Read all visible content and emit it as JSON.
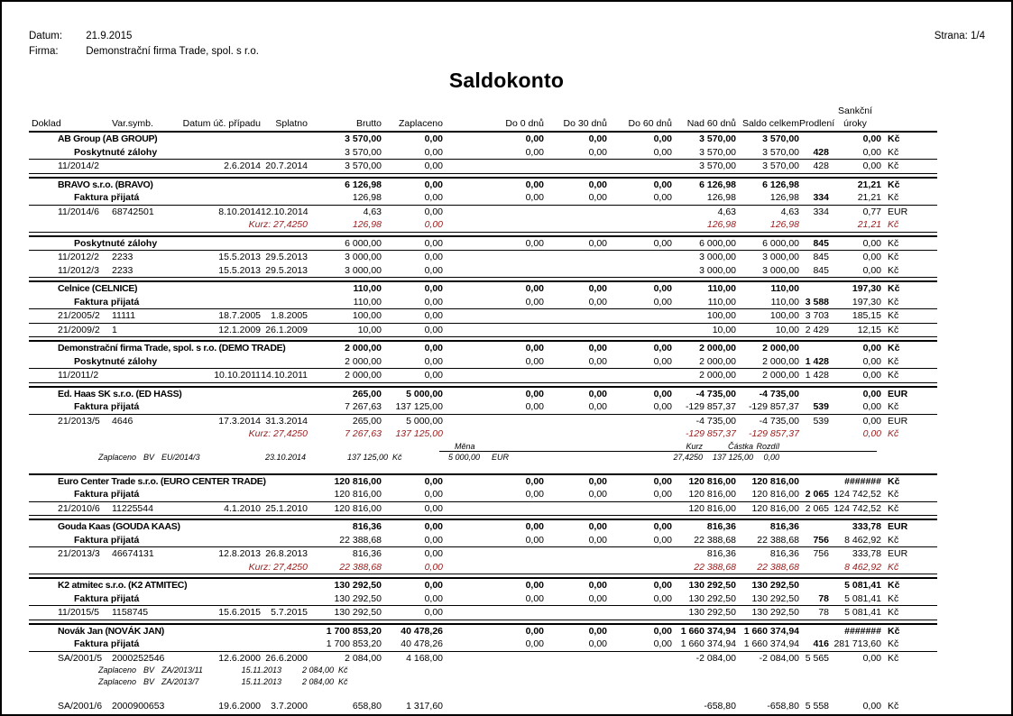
{
  "colors": {
    "accent_red": "#9b1b1b",
    "line": "#000000",
    "background": "#ffffff"
  },
  "page": {
    "date_label": "Datum:",
    "date": "21.9.2015",
    "firm_label": "Firma:",
    "firm": "Demonstrační firma Trade, spol. s r.o.",
    "page_label": "Strana: 1/4",
    "title": "Saldokonto"
  },
  "table": {
    "header": {
      "cols": [
        "Doklad",
        "Var.symb.",
        "Datum úč. případu",
        "Splatno",
        "Brutto",
        "Zaplaceno",
        "Do 0 dnů",
        "Do 30 dnů",
        "Do 60 dnů",
        "Nad 60 dnů",
        "Saldo celkem",
        "Prodlení"
      ],
      "sankcni_top": "Sankční",
      "sankcni_bottom": "úroky"
    },
    "sections": [
      {
        "end_line": true,
        "rows": [
          {
            "t": "c",
            "name": "AB Group (AB GROUP)",
            "n": [
              "3 570,00",
              "0,00",
              "0,00",
              "0,00",
              "0,00",
              "3 570,00",
              "3 570,00",
              "",
              "0,00",
              "Kč"
            ]
          },
          {
            "t": "g",
            "label": "Poskytnuté zálohy",
            "n": [
              "3 570,00",
              "0,00",
              "0,00",
              "0,00",
              "0,00",
              "3 570,00",
              "3 570,00",
              "428",
              "0,00",
              "Kč"
            ]
          },
          {
            "t": "d",
            "sep": true,
            "doklad": "11/2014/2",
            "vs": "",
            "datum": "2.6.2014",
            "splatno": "20.7.2014",
            "n": [
              "3 570,00",
              "0,00",
              "",
              "",
              "",
              "3 570,00",
              "3 570,00",
              "428",
              "0,00",
              "Kč"
            ]
          }
        ]
      },
      {
        "end_line": true,
        "rows": [
          {
            "t": "c",
            "name": "BRAVO s.r.o. (BRAVO)",
            "n": [
              "6 126,98",
              "0,00",
              "0,00",
              "0,00",
              "0,00",
              "6 126,98",
              "6 126,98",
              "",
              "21,21",
              "Kč"
            ]
          },
          {
            "t": "g",
            "label": "Faktura přijatá",
            "n": [
              "126,98",
              "0,00",
              "0,00",
              "0,00",
              "0,00",
              "126,98",
              "126,98",
              "334",
              "21,21",
              "Kč"
            ]
          },
          {
            "t": "d",
            "sep": true,
            "doklad": "11/2014/6",
            "vs": "68742501",
            "datum": "8.10.2014",
            "splatno": "12.10.2014",
            "n": [
              "4,63",
              "0,00",
              "",
              "",
              "",
              "4,63",
              "4,63",
              "334",
              "0,77",
              "EUR"
            ]
          },
          {
            "t": "k",
            "label": "Kurz: 27,4250",
            "n": [
              "126,98",
              "0,00",
              "",
              "",
              "",
              "126,98",
              "126,98",
              "",
              "21,21",
              "Kč"
            ]
          }
        ]
      },
      {
        "end_line": true,
        "rows": [
          {
            "t": "g",
            "label": "Poskytnuté zálohy",
            "n": [
              "6 000,00",
              "0,00",
              "0,00",
              "0,00",
              "0,00",
              "6 000,00",
              "6 000,00",
              "845",
              "0,00",
              "Kč"
            ]
          },
          {
            "t": "d",
            "sep": true,
            "doklad": "11/2012/2",
            "vs": "2233",
            "datum": "15.5.2013",
            "splatno": "29.5.2013",
            "n": [
              "3 000,00",
              "0,00",
              "",
              "",
              "",
              "3 000,00",
              "3 000,00",
              "845",
              "0,00",
              "Kč"
            ]
          },
          {
            "t": "d",
            "sep": false,
            "doklad": "11/2012/3",
            "vs": "2233",
            "datum": "15.5.2013",
            "splatno": "29.5.2013",
            "n": [
              "3 000,00",
              "0,00",
              "",
              "",
              "",
              "3 000,00",
              "3 000,00",
              "845",
              "0,00",
              "Kč"
            ]
          }
        ]
      },
      {
        "end_line": true,
        "rows": [
          {
            "t": "c",
            "name": "Celnice (CELNICE)",
            "n": [
              "110,00",
              "0,00",
              "0,00",
              "0,00",
              "0,00",
              "110,00",
              "110,00",
              "",
              "197,30",
              "Kč"
            ]
          },
          {
            "t": "g",
            "label": "Faktura přijatá",
            "n": [
              "110,00",
              "0,00",
              "0,00",
              "0,00",
              "0,00",
              "110,00",
              "110,00",
              "3 588",
              "197,30",
              "Kč"
            ]
          },
          {
            "t": "d",
            "sep": true,
            "doklad": "21/2005/2",
            "vs": "11111",
            "datum": "18.7.2005",
            "splatno": "1.8.2005",
            "n": [
              "100,00",
              "0,00",
              "",
              "",
              "",
              "100,00",
              "100,00",
              "3 703",
              "185,15",
              "Kč"
            ]
          },
          {
            "t": "d",
            "sep": true,
            "doklad": "21/2009/2",
            "vs": "1",
            "datum": "12.1.2009",
            "splatno": "26.1.2009",
            "n": [
              "10,00",
              "0,00",
              "",
              "",
              "",
              "10,00",
              "10,00",
              "2 429",
              "12,15",
              "Kč"
            ]
          }
        ]
      },
      {
        "end_line": true,
        "rows": [
          {
            "t": "c",
            "name": "Demonstrační firma Trade, spol. s r.o. (DEMO TRADE)",
            "n": [
              "2 000,00",
              "0,00",
              "0,00",
              "0,00",
              "0,00",
              "2 000,00",
              "2 000,00",
              "",
              "0,00",
              "Kč"
            ]
          },
          {
            "t": "g",
            "label": "Poskytnuté zálohy",
            "n": [
              "2 000,00",
              "0,00",
              "0,00",
              "0,00",
              "0,00",
              "2 000,00",
              "2 000,00",
              "1 428",
              "0,00",
              "Kč"
            ]
          },
          {
            "t": "d",
            "sep": true,
            "doklad": "11/2011/2",
            "vs": "",
            "datum": "10.10.2011",
            "splatno": "14.10.2011",
            "n": [
              "2 000,00",
              "0,00",
              "",
              "",
              "",
              "2 000,00",
              "2 000,00",
              "1 428",
              "0,00",
              "Kč"
            ]
          }
        ]
      },
      {
        "end_line": false,
        "space_after": true,
        "rows": [
          {
            "t": "c",
            "name": "Ed. Haas SK s.r.o. (ED HASS)",
            "n": [
              "265,00",
              "5 000,00",
              "0,00",
              "0,00",
              "0,00",
              "-4 735,00",
              "-4 735,00",
              "",
              "0,00",
              "EUR"
            ]
          },
          {
            "t": "g",
            "label": "Faktura přijatá",
            "n": [
              "7 267,63",
              "137 125,00",
              "0,00",
              "0,00",
              "0,00",
              "-129 857,37",
              "-129 857,37",
              "539",
              "0,00",
              "Kč"
            ]
          },
          {
            "t": "d",
            "sep": true,
            "doklad": "21/2013/5",
            "vs": "4646",
            "datum": "17.3.2014",
            "splatno": "31.3.2014",
            "n": [
              "265,00",
              "5 000,00",
              "",
              "",
              "",
              "-4 735,00",
              "-4 735,00",
              "539",
              "0,00",
              "EUR"
            ]
          },
          {
            "t": "k",
            "label": "Kurz: 27,4250",
            "n": [
              "7 267,63",
              "137 125,00",
              "",
              "",
              "",
              "-129 857,37",
              "-129 857,37",
              "",
              "0,00",
              "Kč"
            ]
          },
          {
            "t": "fxh",
            "mena": "Měna",
            "kurz": "Kurz",
            "castka": "Částka",
            "rozdil": "Rozdíl"
          },
          {
            "t": "pay",
            "variant": "a",
            "label": "Zaplaceno",
            "method": "BV",
            "doc": "EU/2014/3",
            "date": "23.10.2014",
            "amount": "137 125,00",
            "unit": "Kč",
            "fx": {
              "mena": "5 000,00",
              "mena_unit": "EUR",
              "kurz": "27,4250",
              "castka": "137 125,00",
              "rozdil": "0,00"
            }
          }
        ]
      },
      {
        "end_line": true,
        "rows": [
          {
            "t": "c",
            "name": "Euro Center Trade s.r.o. (EURO CENTER TRADE)",
            "n": [
              "120 816,00",
              "0,00",
              "0,00",
              "0,00",
              "0,00",
              "120 816,00",
              "120 816,00",
              "",
              "#######",
              "Kč"
            ]
          },
          {
            "t": "g",
            "label": "Faktura přijatá",
            "n": [
              "120 816,00",
              "0,00",
              "0,00",
              "0,00",
              "0,00",
              "120 816,00",
              "120 816,00",
              "2 065",
              "124 742,52",
              "Kč"
            ]
          },
          {
            "t": "d",
            "sep": true,
            "doklad": "21/2010/6",
            "vs": "11225544",
            "datum": "4.1.2010",
            "splatno": "25.1.2010",
            "n": [
              "120 816,00",
              "0,00",
              "",
              "",
              "",
              "120 816,00",
              "120 816,00",
              "2 065",
              "124 742,52",
              "Kč"
            ]
          }
        ]
      },
      {
        "end_line": true,
        "rows": [
          {
            "t": "c",
            "name": "Gouda Kaas (GOUDA KAAS)",
            "n": [
              "816,36",
              "0,00",
              "0,00",
              "0,00",
              "0,00",
              "816,36",
              "816,36",
              "",
              "333,78",
              "EUR"
            ]
          },
          {
            "t": "g",
            "label": "Faktura přijatá",
            "n": [
              "22 388,68",
              "0,00",
              "0,00",
              "0,00",
              "0,00",
              "22 388,68",
              "22 388,68",
              "756",
              "8 462,92",
              "Kč"
            ]
          },
          {
            "t": "d",
            "sep": true,
            "doklad": "21/2013/3",
            "vs": "46674131",
            "datum": "12.8.2013",
            "splatno": "26.8.2013",
            "n": [
              "816,36",
              "0,00",
              "",
              "",
              "",
              "816,36",
              "816,36",
              "756",
              "333,78",
              "EUR"
            ]
          },
          {
            "t": "k",
            "label": "Kurz: 27,4250",
            "n": [
              "22 388,68",
              "0,00",
              "",
              "",
              "",
              "22 388,68",
              "22 388,68",
              "",
              "8 462,92",
              "Kč"
            ]
          }
        ]
      },
      {
        "end_line": true,
        "rows": [
          {
            "t": "c",
            "name": "K2 atmitec s.r.o. (K2 ATMITEC)",
            "n": [
              "130 292,50",
              "0,00",
              "0,00",
              "0,00",
              "0,00",
              "130 292,50",
              "130 292,50",
              "",
              "5 081,41",
              "Kč"
            ]
          },
          {
            "t": "g",
            "label": "Faktura přijatá",
            "n": [
              "130 292,50",
              "0,00",
              "0,00",
              "0,00",
              "0,00",
              "130 292,50",
              "130 292,50",
              "78",
              "5 081,41",
              "Kč"
            ]
          },
          {
            "t": "d",
            "sep": true,
            "doklad": "11/2015/5",
            "vs": "1158745",
            "datum": "15.6.2015",
            "splatno": "5.7.2015",
            "n": [
              "130 292,50",
              "0,00",
              "",
              "",
              "",
              "130 292,50",
              "130 292,50",
              "78",
              "5 081,41",
              "Kč"
            ]
          }
        ]
      },
      {
        "end_line": false,
        "rows": [
          {
            "t": "c",
            "name": "Novák Jan (NOVÁK JAN)",
            "n": [
              "1 700 853,20",
              "40 478,26",
              "0,00",
              "0,00",
              "0,00",
              "1 660 374,94",
              "1 660 374,94",
              "",
              "#######",
              "Kč"
            ]
          },
          {
            "t": "g",
            "label": "Faktura přijatá",
            "n": [
              "1 700 853,20",
              "40 478,26",
              "0,00",
              "0,00",
              "0,00",
              "1 660 374,94",
              "1 660 374,94",
              "416",
              "281 713,60",
              "Kč"
            ]
          },
          {
            "t": "d",
            "sep": true,
            "doklad": "SA/2001/5",
            "vs": "2000252546",
            "datum": "12.6.2000",
            "splatno": "26.6.2000",
            "n": [
              "2 084,00",
              "4 168,00",
              "",
              "",
              "",
              "-2 084,00",
              "-2 084,00",
              "5 565",
              "0,00",
              "Kč"
            ]
          },
          {
            "t": "pay",
            "variant": "b",
            "label": "Zaplaceno",
            "method": "BV",
            "doc": "ZA/2013/11",
            "date": "15.11.2013",
            "amount": "2 084,00",
            "unit": "Kč"
          },
          {
            "t": "pay",
            "variant": "b",
            "label": "Zaplaceno",
            "method": "BV",
            "doc": "ZA/2013/7",
            "date": "15.11.2013",
            "amount": "2 084,00",
            "unit": "Kč"
          },
          {
            "t": "d",
            "sep": false,
            "gap": true,
            "doklad": "SA/2001/6",
            "vs": "2000900653",
            "datum": "19.6.2000",
            "splatno": "3.7.2000",
            "n": [
              "658,80",
              "1 317,60",
              "",
              "",
              "",
              "-658,80",
              "-658,80",
              "5 558",
              "0,00",
              "Kč"
            ]
          }
        ]
      }
    ]
  }
}
